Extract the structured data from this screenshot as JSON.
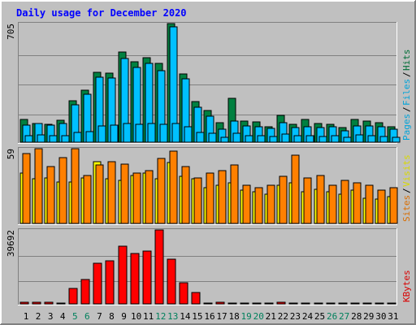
{
  "chart_data": {
    "type": "bar",
    "title": "Daily usage for December 2020",
    "days": [
      "1",
      "2",
      "3",
      "4",
      "5",
      "6",
      "7",
      "8",
      "9",
      "10",
      "11",
      "12",
      "13",
      "14",
      "15",
      "16",
      "17",
      "18",
      "19",
      "20",
      "21",
      "22",
      "23",
      "24",
      "25",
      "26",
      "27",
      "28",
      "29",
      "30",
      "31"
    ],
    "weekend_days": [
      "5",
      "6",
      "12",
      "13",
      "19",
      "20",
      "26",
      "27"
    ],
    "panels": [
      {
        "id": "hits_files_pages",
        "max_label": "705",
        "ymax": 705,
        "series": [
          {
            "name": "Hits",
            "color": "#008040",
            "values": [
              134,
              112,
              108,
              130,
              245,
              310,
              415,
              412,
              535,
              480,
              500,
              468,
              705,
              405,
              240,
              190,
              118,
              260,
              126,
              122,
              90,
              160,
              106,
              136,
              112,
              108,
              87,
              136,
              124,
              116,
              92
            ]
          },
          {
            "name": "Files",
            "color": "#00C0FF",
            "values": [
              100,
              110,
              100,
              112,
              220,
              285,
              385,
              382,
              495,
              443,
              466,
              425,
              685,
              378,
              210,
              155,
              75,
              124,
              96,
              92,
              80,
              118,
              88,
              92,
              88,
              92,
              70,
              98,
              98,
              90,
              78
            ]
          },
          {
            "name": "Pages",
            "color": "#00C0FF",
            "values": [
              38,
              42,
              38,
              40,
              60,
              65,
              98,
              100,
              110,
              108,
              110,
              106,
              110,
              94,
              60,
              52,
              30,
              52,
              40,
              40,
              32,
              50,
              38,
              40,
              36,
              40,
              30,
              42,
              38,
              36,
              30
            ]
          }
        ]
      },
      {
        "id": "visits_sites",
        "max_label": "59",
        "ymax": 59,
        "series": [
          {
            "name": "Visits",
            "color": "#FFFF00",
            "values": [
              40,
              35,
              36,
              33,
              33,
              36,
              49,
              35,
              34,
              38,
              40,
              35,
              48,
              37,
              35,
              28,
              30,
              32,
              26,
              25,
              23,
              30,
              32,
              25,
              27,
              25,
              23,
              26,
              20,
              19,
              21
            ]
          },
          {
            "name": "Sites",
            "color": "#FF8000",
            "values": [
              55,
              59,
              45,
              52,
              59,
              38,
              46,
              49,
              47,
              40,
              42,
              51,
              57,
              45,
              36,
              40,
              42,
              46,
              30,
              28,
              30,
              37,
              54,
              36,
              38,
              30,
              34,
              32,
              30,
              26,
              28
            ]
          }
        ]
      },
      {
        "id": "kbytes",
        "max_label": "39692",
        "ymax": 39692,
        "series": [
          {
            "name": "KBytes",
            "color": "#FF0000",
            "values": [
              800,
              800,
              900,
              600,
              8300,
              13000,
              22000,
              23000,
              31000,
              27000,
              28500,
              39692,
              24200,
              11200,
              6200,
              200,
              800,
              600,
              500,
              500,
              500,
              900,
              400,
              400,
              300,
              300,
              200,
              200,
              200,
              200,
              200
            ]
          }
        ]
      }
    ]
  }
}
